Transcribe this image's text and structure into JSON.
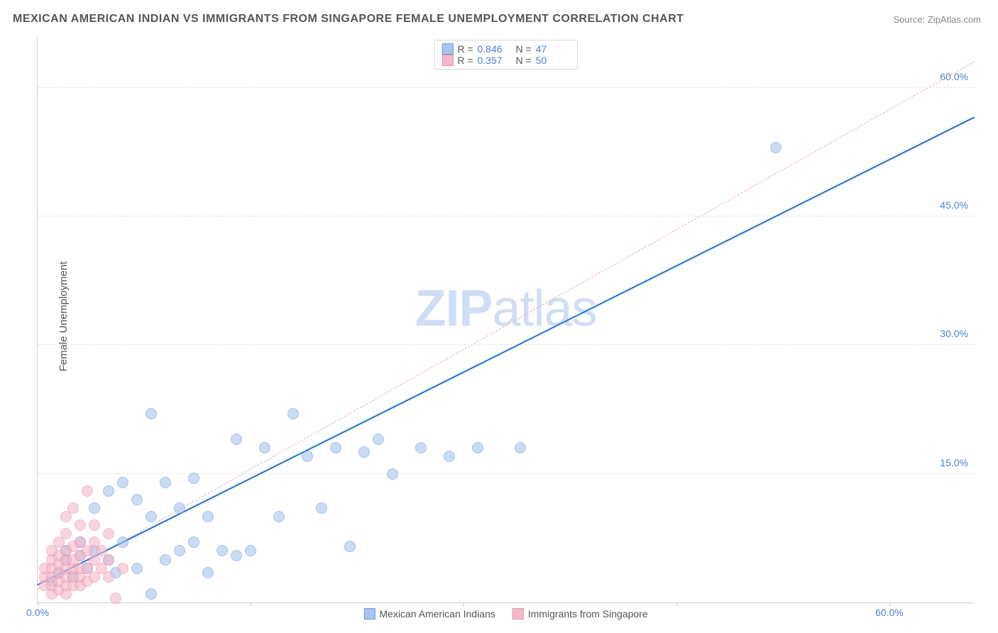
{
  "title": "MEXICAN AMERICAN INDIAN VS IMMIGRANTS FROM SINGAPORE FEMALE UNEMPLOYMENT CORRELATION CHART",
  "source": "Source: ZipAtlas.com",
  "ylabel": "Female Unemployment",
  "watermark_bold": "ZIP",
  "watermark_light": "atlas",
  "chart": {
    "type": "scatter",
    "xlim": [
      0,
      66
    ],
    "ylim": [
      0,
      66
    ],
    "xticks": [
      0,
      60
    ],
    "xtick_labels": [
      "0.0%",
      "60.0%"
    ],
    "yticks": [
      15,
      30,
      45,
      60
    ],
    "ytick_labels": [
      "15.0%",
      "30.0%",
      "45.0%",
      "60.0%"
    ],
    "xtick_marks": [
      0,
      15,
      30,
      45,
      60
    ],
    "background_color": "#ffffff",
    "grid_color": "#e5e5e5",
    "axis_label_color": "#4a7fd8",
    "point_radius": 8,
    "point_opacity": 0.6,
    "series": [
      {
        "name": "Mexican American Indians",
        "color_fill": "#a8c4ed",
        "color_stroke": "#6a9be0",
        "R": "0.846",
        "N": "47",
        "regression": {
          "x1": 0,
          "y1": 2.0,
          "x2": 66,
          "y2": 56.5,
          "color": "#1e6fd9",
          "width": 2.5,
          "dash": "solid"
        },
        "points": [
          [
            1,
            2.5
          ],
          [
            1.5,
            3.5
          ],
          [
            2,
            5
          ],
          [
            2,
            6
          ],
          [
            2.5,
            3
          ],
          [
            3,
            5.5
          ],
          [
            3,
            7
          ],
          [
            3.5,
            4
          ],
          [
            4,
            6
          ],
          [
            4,
            11
          ],
          [
            5,
            5
          ],
          [
            5,
            13
          ],
          [
            5.5,
            3.5
          ],
          [
            6,
            7
          ],
          [
            6,
            14
          ],
          [
            7,
            4
          ],
          [
            7,
            12
          ],
          [
            8,
            1
          ],
          [
            8,
            10
          ],
          [
            8,
            22
          ],
          [
            9,
            5
          ],
          [
            9,
            14
          ],
          [
            10,
            6
          ],
          [
            10,
            11
          ],
          [
            11,
            7
          ],
          [
            11,
            14.5
          ],
          [
            12,
            3.5
          ],
          [
            12,
            10
          ],
          [
            13,
            6
          ],
          [
            14,
            5.5
          ],
          [
            14,
            19
          ],
          [
            15,
            6
          ],
          [
            16,
            18
          ],
          [
            17,
            10
          ],
          [
            18,
            22
          ],
          [
            19,
            17
          ],
          [
            20,
            11
          ],
          [
            21,
            18
          ],
          [
            22,
            6.5
          ],
          [
            23,
            17.5
          ],
          [
            24,
            19
          ],
          [
            25,
            15
          ],
          [
            27,
            18
          ],
          [
            29,
            17
          ],
          [
            31,
            18
          ],
          [
            34,
            18
          ],
          [
            52,
            53
          ]
        ]
      },
      {
        "name": "Immigrants from Singapore",
        "color_fill": "#f5b8c9",
        "color_stroke": "#ec8fab",
        "R": "0.357",
        "N": "50",
        "regression": {
          "x1": 0,
          "y1": 1.5,
          "x2": 66,
          "y2": 63.0,
          "color": "#f0a8bd",
          "width": 1.5,
          "dash": "dashed"
        },
        "points": [
          [
            0.5,
            2
          ],
          [
            0.5,
            3
          ],
          [
            0.5,
            4
          ],
          [
            1,
            1
          ],
          [
            1,
            2
          ],
          [
            1,
            3
          ],
          [
            1,
            4
          ],
          [
            1,
            5
          ],
          [
            1,
            6
          ],
          [
            1.5,
            1.5
          ],
          [
            1.5,
            2.5
          ],
          [
            1.5,
            3.5
          ],
          [
            1.5,
            4.5
          ],
          [
            1.5,
            5.5
          ],
          [
            1.5,
            7
          ],
          [
            2,
            1
          ],
          [
            2,
            2
          ],
          [
            2,
            3
          ],
          [
            2,
            4
          ],
          [
            2,
            5
          ],
          [
            2,
            6
          ],
          [
            2,
            8
          ],
          [
            2,
            10
          ],
          [
            2.5,
            2
          ],
          [
            2.5,
            3
          ],
          [
            2.5,
            4
          ],
          [
            2.5,
            5
          ],
          [
            2.5,
            6.5
          ],
          [
            2.5,
            11
          ],
          [
            3,
            2
          ],
          [
            3,
            3
          ],
          [
            3,
            4
          ],
          [
            3,
            5.5
          ],
          [
            3,
            7
          ],
          [
            3,
            9
          ],
          [
            3.5,
            2.5
          ],
          [
            3.5,
            4
          ],
          [
            3.5,
            6
          ],
          [
            3.5,
            13
          ],
          [
            4,
            3
          ],
          [
            4,
            5
          ],
          [
            4,
            7
          ],
          [
            4,
            9
          ],
          [
            4.5,
            4
          ],
          [
            4.5,
            6
          ],
          [
            5,
            3
          ],
          [
            5,
            5
          ],
          [
            5,
            8
          ],
          [
            5.5,
            0.5
          ],
          [
            6,
            4
          ]
        ]
      }
    ]
  },
  "legend_top": {
    "r_label": "R =",
    "n_label": "N ="
  }
}
